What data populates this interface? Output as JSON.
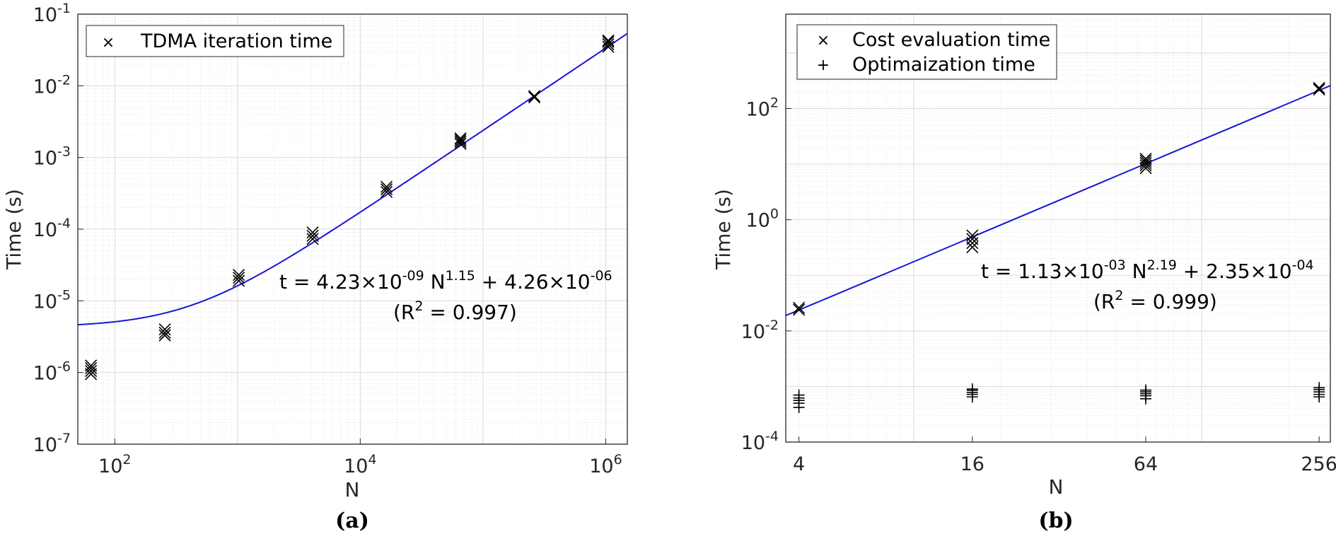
{
  "chart_data": [
    {
      "id": "a",
      "type": "scatter",
      "x_scale": "log",
      "y_scale": "log",
      "xlim": [
        50,
        1500000
      ],
      "ylim": [
        1e-07,
        0.1
      ],
      "xlabel": "N",
      "ylabel": "Time (s)",
      "grid": true,
      "minor_grid": true,
      "x_ticks": [
        {
          "v": 100,
          "base": "10",
          "exp": "2"
        },
        {
          "v": 10000,
          "base": "10",
          "exp": "4"
        },
        {
          "v": 1000000,
          "base": "10",
          "exp": "6"
        }
      ],
      "y_ticks": [
        {
          "v": 1e-07,
          "base": "10",
          "exp": "-7"
        },
        {
          "v": 1e-06,
          "base": "10",
          "exp": "-6"
        },
        {
          "v": 1e-05,
          "base": "10",
          "exp": "-5"
        },
        {
          "v": 0.0001,
          "base": "10",
          "exp": "-4"
        },
        {
          "v": 0.001,
          "base": "10",
          "exp": "-3"
        },
        {
          "v": 0.01,
          "base": "10",
          "exp": "-2"
        },
        {
          "v": 0.1,
          "base": "10",
          "exp": "-1"
        }
      ],
      "legend": {
        "position": "top-left",
        "entries": [
          {
            "marker": "×",
            "label": "TDMA iteration time"
          }
        ]
      },
      "series": [
        {
          "name": "TDMA iteration time",
          "marker": "x",
          "color": "#000000",
          "x": [
            64,
            64,
            64,
            64,
            256,
            256,
            256,
            1024,
            1024,
            1024,
            4096,
            4096,
            4096,
            16384,
            16384,
            16384,
            65536,
            65536,
            65536,
            65536,
            262144,
            262144,
            1048576,
            1048576,
            1048576,
            1048576
          ],
          "y": [
            9.5e-07,
            1.05e-06,
            1.15e-06,
            1.25e-06,
            3.3e-06,
            3.6e-06,
            4e-06,
            1.9e-05,
            2.1e-05,
            2.3e-05,
            7.3e-05,
            8.1e-05,
            9e-05,
            0.00033,
            0.00036,
            0.00039,
            0.00155,
            0.00165,
            0.00175,
            0.00185,
            0.0069,
            0.0072,
            0.035,
            0.038,
            0.041,
            0.043
          ]
        }
      ],
      "fit": {
        "color": "#1515d6",
        "a": 4.23e-09,
        "b": 1.15,
        "c": 4.26e-06,
        "x_range": [
          50,
          1500000
        ]
      },
      "annotation": {
        "line1_pre": "t = 4.23×10",
        "line1_e1": "-09",
        "line1_mid": " N",
        "line1_e2": "1.15",
        "line1_mid2": " + 4.26×10",
        "line1_e3": "-06",
        "line2_pre": "(R",
        "line2_e": "2",
        "line2_post": " = 0.997)"
      },
      "caption": "(a)"
    },
    {
      "id": "b",
      "type": "scatter",
      "x_scale": "log",
      "y_scale": "log",
      "xlim": [
        3.6,
        280
      ],
      "ylim": [
        0.0001,
        5000
      ],
      "xlabel": "N",
      "ylabel": "Time (s)",
      "grid": true,
      "minor_grid": true,
      "x_ticks": [
        {
          "v": 4,
          "label": "4"
        },
        {
          "v": 16,
          "label": "16"
        },
        {
          "v": 64,
          "label": "64"
        },
        {
          "v": 256,
          "label": "256"
        }
      ],
      "y_ticks": [
        {
          "v": 0.0001,
          "base": "10",
          "exp": "-4"
        },
        {
          "v": 0.01,
          "base": "10",
          "exp": "-2"
        },
        {
          "v": 1,
          "base": "10",
          "exp": "0"
        },
        {
          "v": 100,
          "base": "10",
          "exp": "2"
        }
      ],
      "legend": {
        "position": "top-left",
        "entries": [
          {
            "marker": "×",
            "label": "Cost evaluation time"
          },
          {
            "marker": "+",
            "label": "Optimaization time"
          }
        ]
      },
      "series": [
        {
          "name": "Cost evaluation time",
          "marker": "x",
          "color": "#000000",
          "x": [
            4,
            4,
            16,
            16,
            16,
            16,
            64,
            64,
            64,
            64,
            64,
            256,
            256
          ],
          "y": [
            0.024,
            0.026,
            0.32,
            0.38,
            0.45,
            0.52,
            8.5,
            9.5,
            10.5,
            11.5,
            12.5,
            220,
            235
          ]
        },
        {
          "name": "Optimaization time",
          "marker": "+",
          "color": "#000000",
          "x": [
            4,
            4,
            4,
            4,
            4,
            16,
            16,
            16,
            16,
            16,
            64,
            64,
            64,
            64,
            64,
            256,
            256,
            256,
            256,
            256
          ],
          "y": [
            0.00042,
            0.0005,
            0.00056,
            0.00062,
            0.0007,
            0.00065,
            0.00072,
            0.00078,
            0.00085,
            0.0009,
            0.0006,
            0.00068,
            0.00074,
            0.0008,
            0.00086,
            0.00065,
            0.00072,
            0.0008,
            0.00088,
            0.00095
          ]
        }
      ],
      "fit": {
        "color": "#1515d6",
        "a": 0.00113,
        "b": 2.19,
        "c": 0.000235,
        "x_range": [
          3.6,
          280
        ]
      },
      "annotation": {
        "line1_pre": "t = 1.13×10",
        "line1_e1": "-03",
        "line1_mid": " N",
        "line1_e2": "2.19",
        "line1_mid2": " + 2.35×10",
        "line1_e3": "-04",
        "line2_pre": "(R",
        "line2_e": "2",
        "line2_post": " = 0.999)"
      },
      "caption": "(b)"
    }
  ]
}
